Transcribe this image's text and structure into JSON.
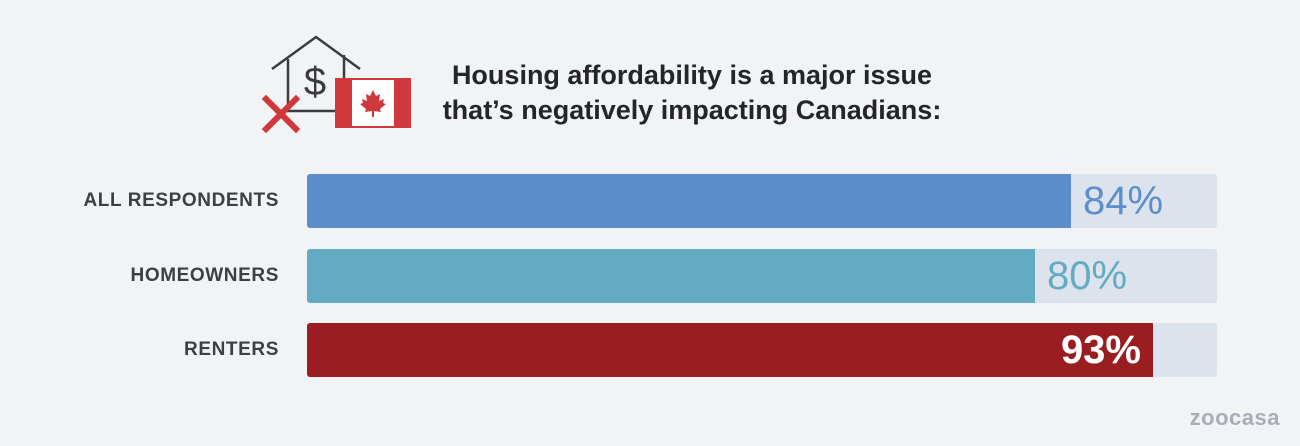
{
  "title_lines": [
    "Housing affordability is a major issue",
    "that’s negatively impacting Canadians:"
  ],
  "icon": {
    "name": "house-dollar-canada-flag-icon",
    "colors": {
      "outline": "#3a3c42",
      "red": "#d0393c"
    }
  },
  "chart_data": {
    "type": "bar",
    "orientation": "horizontal",
    "title": "Housing affordability is a major issue that’s negatively impacting Canadians:",
    "categories": [
      "ALL RESPONDENTS",
      "HOMEOWNERS",
      "RENTERS"
    ],
    "values": [
      84,
      80,
      93
    ],
    "value_labels": [
      "84%",
      "80%",
      "93%"
    ],
    "unit": "%",
    "xlim": [
      0,
      100
    ],
    "colors": [
      "#5b8ecb",
      "#63abc2",
      "#9a1e21"
    ],
    "track_color": "#dde3ec",
    "grid": false,
    "legend": "none"
  },
  "brand": "zoocasa"
}
